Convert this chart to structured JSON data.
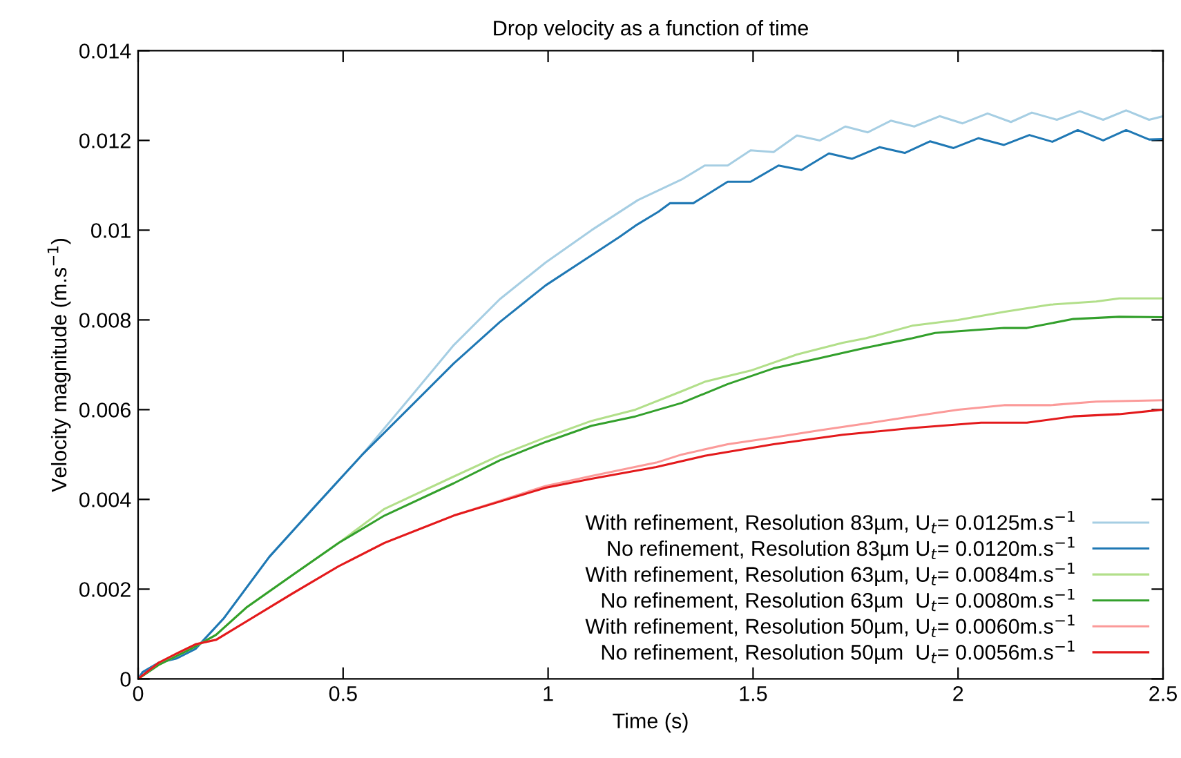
{
  "chart_data": {
    "type": "line",
    "title": "Drop velocity as a function of time",
    "xlabel": "Time (s)",
    "ylabel": "Velocity magnitude (m.s$^{−1}$)",
    "xlim": [
      0,
      2.5
    ],
    "ylim": [
      0,
      0.014
    ],
    "xticks": [
      0,
      0.5,
      1,
      1.5,
      2,
      2.5
    ],
    "yticks": [
      0,
      0.002,
      0.004,
      0.006,
      0.008,
      0.01,
      0.012,
      0.014
    ],
    "grid": false,
    "legend": "bottom right",
    "marker": "none",
    "line_style": "solid",
    "series": [
      {
        "name": "With refinement, Resolution 83µm, U$_{t}$= 0.0125m.s$^{−1}$",
        "color": "#a6cee3",
        "x": [
          0,
          0.011,
          0.05,
          0.095,
          0.14,
          0.208,
          0.32,
          0.432,
          0.545,
          0.657,
          0.77,
          0.882,
          0.994,
          1.106,
          1.219,
          1.326,
          1.382,
          1.438,
          1.494,
          1.55,
          1.607,
          1.663,
          1.725,
          1.78,
          1.836,
          1.893,
          1.955,
          2.011,
          2.072,
          2.129,
          2.18,
          2.241,
          2.297,
          2.354,
          2.41,
          2.466,
          2.5
        ],
        "values": [
          0,
          0.00015,
          0.00036,
          0.00046,
          0.00067,
          0.00134,
          0.00272,
          0.00385,
          0.00498,
          0.0062,
          0.00744,
          0.00846,
          0.00928,
          0.01,
          0.01067,
          0.01113,
          0.01144,
          0.01144,
          0.01178,
          0.01174,
          0.01211,
          0.012,
          0.01231,
          0.01218,
          0.01244,
          0.01231,
          0.01254,
          0.01238,
          0.0126,
          0.01241,
          0.01262,
          0.01246,
          0.01265,
          0.01246,
          0.01267,
          0.01246,
          0.01254
        ]
      },
      {
        "name": "No refinement, Resolution 83µm U$_{t}$= 0.0120m.s$^{−1}$",
        "color": "#1f78b4",
        "x": [
          0,
          0.011,
          0.05,
          0.095,
          0.14,
          0.208,
          0.32,
          0.432,
          0.545,
          0.657,
          0.77,
          0.882,
          0.994,
          1.106,
          1.174,
          1.213,
          1.269,
          1.297,
          1.354,
          1.438,
          1.494,
          1.562,
          1.618,
          1.685,
          1.741,
          1.809,
          1.87,
          1.932,
          1.989,
          2.05,
          2.112,
          2.174,
          2.23,
          2.292,
          2.354,
          2.41,
          2.466,
          2.5
        ],
        "values": [
          0,
          0.00015,
          0.00036,
          0.00046,
          0.00067,
          0.00134,
          0.00272,
          0.00385,
          0.00498,
          0.006,
          0.00703,
          0.00795,
          0.00877,
          0.00944,
          0.00985,
          0.0101,
          0.01041,
          0.0106,
          0.0106,
          0.01108,
          0.01108,
          0.01144,
          0.01134,
          0.01171,
          0.01159,
          0.01185,
          0.01172,
          0.01198,
          0.01183,
          0.01205,
          0.0119,
          0.01212,
          0.01197,
          0.01223,
          0.012,
          0.01223,
          0.01202,
          0.01203
        ]
      },
      {
        "name": "With refinement, Resolution 63µm, U$_{t}$= 0.0084m.s$^{−1}$",
        "color": "#b2df8a",
        "x": [
          0,
          0.05,
          0.129,
          0.19,
          0.264,
          0.376,
          0.489,
          0.601,
          0.77,
          0.882,
          0.994,
          1.106,
          1.213,
          1.326,
          1.382,
          1.494,
          1.607,
          1.719,
          1.775,
          1.888,
          2.0,
          2.112,
          2.225,
          2.337,
          2.393,
          2.5
        ],
        "values": [
          0,
          0.00031,
          0.00067,
          0.00098,
          0.00159,
          0.00231,
          0.00303,
          0.00379,
          0.00451,
          0.00498,
          0.00538,
          0.00575,
          0.006,
          0.00641,
          0.00662,
          0.00687,
          0.00723,
          0.00749,
          0.00759,
          0.00787,
          0.008,
          0.00818,
          0.00834,
          0.00841,
          0.00848,
          0.00848
        ]
      },
      {
        "name": "No refinement, Resolution 63µm  U$_{t}$= 0.0080m.s$^{−1}$",
        "color": "#33a02c",
        "x": [
          0,
          0.05,
          0.129,
          0.19,
          0.264,
          0.376,
          0.489,
          0.601,
          0.77,
          0.882,
          0.994,
          1.106,
          1.213,
          1.326,
          1.438,
          1.55,
          1.663,
          1.775,
          1.888,
          1.944,
          2.112,
          2.168,
          2.281,
          2.393,
          2.5
        ],
        "values": [
          0,
          0.00031,
          0.00067,
          0.00098,
          0.00159,
          0.00231,
          0.00303,
          0.00364,
          0.00436,
          0.00487,
          0.00528,
          0.00564,
          0.00585,
          0.00615,
          0.00657,
          0.00692,
          0.00715,
          0.00738,
          0.00759,
          0.00771,
          0.00782,
          0.00782,
          0.00802,
          0.00807,
          0.00806
        ]
      },
      {
        "name": "With refinement, Resolution 50µm, U$_{t}$= 0.0060m.s$^{−1}$",
        "color": "#fb9a99",
        "x": [
          0,
          0.05,
          0.095,
          0.14,
          0.19,
          0.264,
          0.376,
          0.489,
          0.601,
          0.77,
          0.882,
          0.994,
          1.106,
          1.264,
          1.326,
          1.438,
          1.55,
          1.663,
          1.775,
          1.888,
          2.0,
          2.112,
          2.225,
          2.337,
          2.5
        ],
        "values": [
          0,
          0.00036,
          0.00057,
          0.00077,
          0.00087,
          0.00128,
          0.0019,
          0.00251,
          0.00303,
          0.00364,
          0.00397,
          0.0043,
          0.00452,
          0.00482,
          0.005,
          0.00523,
          0.00538,
          0.00554,
          0.00569,
          0.00585,
          0.006,
          0.0061,
          0.0061,
          0.00618,
          0.00621
        ]
      },
      {
        "name": "No refinement, Resolution 50µm  U$_{t}$= 0.0056m.s$^{−1}$",
        "color": "#e31a1c",
        "x": [
          0,
          0.05,
          0.095,
          0.14,
          0.19,
          0.264,
          0.376,
          0.489,
          0.601,
          0.77,
          0.882,
          0.994,
          1.106,
          1.264,
          1.382,
          1.55,
          1.719,
          1.888,
          2.056,
          2.168,
          2.281,
          2.393,
          2.5
        ],
        "values": [
          0,
          0.00036,
          0.00057,
          0.00077,
          0.00087,
          0.00128,
          0.0019,
          0.00251,
          0.00303,
          0.00364,
          0.00395,
          0.00426,
          0.00446,
          0.00472,
          0.00497,
          0.00523,
          0.00544,
          0.00559,
          0.00571,
          0.00571,
          0.00585,
          0.0059,
          0.006
        ]
      }
    ]
  }
}
